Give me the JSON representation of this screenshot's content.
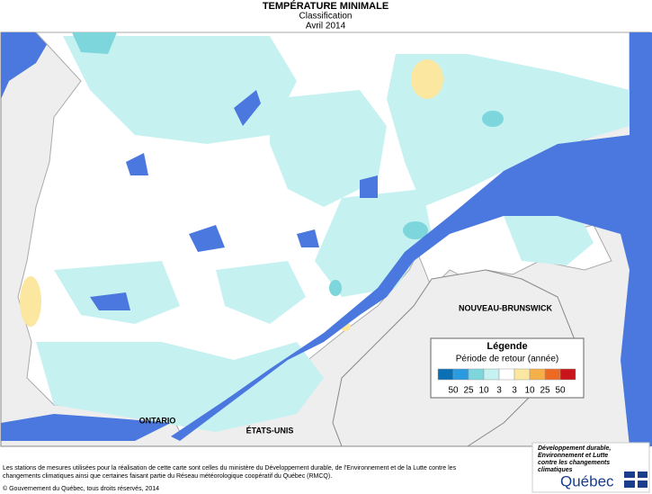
{
  "header": {
    "title": "TEMPÉRATURE MINIMALE",
    "subtitle": "Classification",
    "period": "Avril 2014"
  },
  "map_labels": {
    "ontario": "ONTARIO",
    "usa": "ÉTATS-UNIS",
    "new_brunswick": "NOUVEAU-BRUNSWICK"
  },
  "legend": {
    "title": "Légende",
    "subtitle": "Période de retour (année)",
    "colors": [
      "#0b6fb4",
      "#2a9be0",
      "#7dd6dc",
      "#c6f1f1",
      "#ffffff",
      "#fbe7a0",
      "#f6b04a",
      "#ee6a24",
      "#c8141a"
    ],
    "labels": [
      "50",
      "25",
      "10",
      "3",
      "3",
      "10",
      "25",
      "50"
    ]
  },
  "footer": {
    "note": [
      "Les stations de mesures utilisées pour la réalisation de cette carte sont celles du ministère du Développement durable, de l'Environnement et de la Lutte contre les",
      "changements climatiques ainsi que certaines faisant partie du Réseau météorologique coopératif du Québec (RMCQ)."
    ],
    "copyright": "© Gouvernement du Québec, tous droits réservés, 2014"
  },
  "logo": {
    "tagline": [
      "Développement durable,",
      "Environnement et Lutte",
      "contre les changements",
      "climatiques"
    ],
    "name": "Québec"
  }
}
